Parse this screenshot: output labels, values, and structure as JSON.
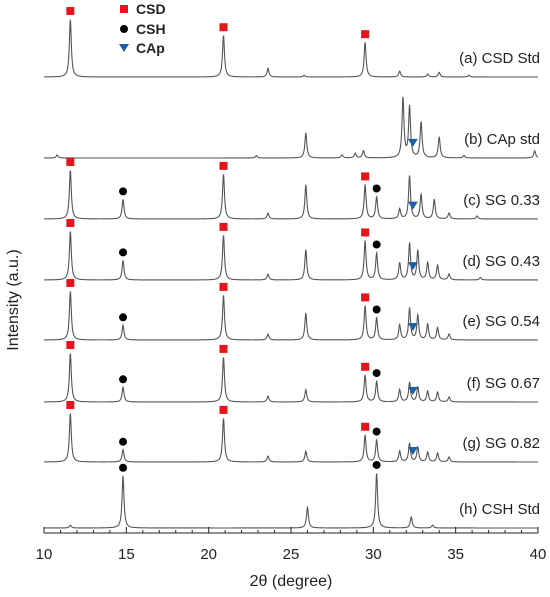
{
  "chart_data": {
    "type": "line",
    "xlabel": "2θ (degree)",
    "ylabel": "Intensity (a.u.)",
    "xlim": [
      10,
      40
    ],
    "x_ticks": [
      10,
      15,
      20,
      25,
      30,
      35,
      40
    ],
    "grid": false,
    "legend": {
      "placement": "top-left",
      "entries": [
        {
          "name": "CSD",
          "marker": "square",
          "color": "#e8141b"
        },
        {
          "name": "CSH",
          "marker": "circle",
          "color": "#000000"
        },
        {
          "name": "CAp",
          "marker": "triangle-down",
          "color": "#1f5fa8"
        }
      ]
    },
    "line_color": "#555555",
    "peak_positions": {
      "CSD": [
        11.6,
        20.9,
        29.5
      ],
      "CSH": [
        14.8,
        30.2
      ],
      "CAp": [
        32.4
      ]
    },
    "series": [
      {
        "name": "(a) CSD Std",
        "phases": {
          "CSD": [
            11.6,
            20.9,
            29.5
          ],
          "CSH": [],
          "CAp": []
        },
        "peaks": [
          [
            11.6,
            1.0
          ],
          [
            20.9,
            0.72
          ],
          [
            23.6,
            0.15
          ],
          [
            25.8,
            0.03
          ],
          [
            29.5,
            0.6
          ],
          [
            31.6,
            0.1
          ],
          [
            33.3,
            0.05
          ],
          [
            34.0,
            0.08
          ],
          [
            35.8,
            0.03
          ]
        ]
      },
      {
        "name": "(b) CAp std",
        "phases": {
          "CSD": [],
          "CSH": [],
          "CAp": [
            32.4
          ]
        },
        "peaks": [
          [
            10.8,
            0.05
          ],
          [
            22.9,
            0.04
          ],
          [
            25.9,
            0.42
          ],
          [
            28.1,
            0.05
          ],
          [
            28.9,
            0.08
          ],
          [
            29.4,
            0.12
          ],
          [
            31.8,
            1.0
          ],
          [
            32.2,
            0.85
          ],
          [
            32.9,
            0.6
          ],
          [
            34.0,
            0.35
          ],
          [
            35.5,
            0.04
          ],
          [
            39.8,
            0.12
          ]
        ]
      },
      {
        "name": "(c) SG 0.33",
        "phases": {
          "CSD": [
            11.6,
            20.9,
            29.5
          ],
          "CSH": [
            14.8,
            30.2
          ],
          "CAp": [
            32.4
          ]
        },
        "peaks": [
          [
            11.6,
            1.0
          ],
          [
            14.8,
            0.4
          ],
          [
            20.9,
            0.92
          ],
          [
            23.6,
            0.12
          ],
          [
            25.9,
            0.7
          ],
          [
            29.5,
            0.7
          ],
          [
            30.2,
            0.45
          ],
          [
            31.6,
            0.2
          ],
          [
            32.2,
            0.88
          ],
          [
            32.9,
            0.5
          ],
          [
            33.7,
            0.4
          ],
          [
            34.6,
            0.12
          ],
          [
            36.3,
            0.06
          ]
        ]
      },
      {
        "name": "(d) SG 0.43",
        "phases": {
          "CSD": [
            11.6,
            20.9,
            29.5
          ],
          "CSH": [
            14.8,
            30.2
          ],
          "CAp": [
            32.4
          ]
        },
        "peaks": [
          [
            11.6,
            1.0
          ],
          [
            14.8,
            0.4
          ],
          [
            20.9,
            0.92
          ],
          [
            23.6,
            0.12
          ],
          [
            25.9,
            0.62
          ],
          [
            29.5,
            0.8
          ],
          [
            30.2,
            0.55
          ],
          [
            31.6,
            0.35
          ],
          [
            32.2,
            0.75
          ],
          [
            32.7,
            0.6
          ],
          [
            33.3,
            0.35
          ],
          [
            33.9,
            0.3
          ],
          [
            34.6,
            0.12
          ],
          [
            36.5,
            0.05
          ]
        ]
      },
      {
        "name": "(e) SG 0.54",
        "phases": {
          "CSD": [
            11.6,
            20.9,
            29.5
          ],
          "CSH": [
            14.8,
            30.2
          ],
          "CAp": [
            32.4
          ]
        },
        "peaks": [
          [
            11.6,
            1.0
          ],
          [
            14.8,
            0.3
          ],
          [
            20.9,
            0.92
          ],
          [
            23.6,
            0.12
          ],
          [
            25.9,
            0.55
          ],
          [
            29.5,
            0.7
          ],
          [
            30.2,
            0.45
          ],
          [
            31.6,
            0.3
          ],
          [
            32.2,
            0.65
          ],
          [
            32.7,
            0.5
          ],
          [
            33.3,
            0.32
          ],
          [
            33.9,
            0.25
          ],
          [
            34.6,
            0.12
          ]
        ]
      },
      {
        "name": "(f) SG 0.67",
        "phases": {
          "CSD": [
            11.6,
            20.9,
            29.5
          ],
          "CSH": [
            14.8,
            30.2
          ],
          "CAp": [
            32.4
          ]
        },
        "peaks": [
          [
            11.6,
            1.0
          ],
          [
            14.8,
            0.3
          ],
          [
            20.9,
            0.92
          ],
          [
            23.6,
            0.12
          ],
          [
            25.9,
            0.25
          ],
          [
            29.5,
            0.55
          ],
          [
            30.2,
            0.42
          ],
          [
            31.6,
            0.25
          ],
          [
            32.2,
            0.4
          ],
          [
            32.7,
            0.3
          ],
          [
            33.3,
            0.22
          ],
          [
            33.9,
            0.2
          ],
          [
            34.6,
            0.1
          ]
        ]
      },
      {
        "name": "(g) SG 0.82",
        "phases": {
          "CSD": [
            11.6,
            20.9,
            29.5
          ],
          "CSH": [
            14.8,
            30.2
          ],
          "CAp": [
            32.4
          ]
        },
        "peaks": [
          [
            11.6,
            1.0
          ],
          [
            14.8,
            0.25
          ],
          [
            20.9,
            0.9
          ],
          [
            23.6,
            0.12
          ],
          [
            25.9,
            0.22
          ],
          [
            29.5,
            0.55
          ],
          [
            30.2,
            0.45
          ],
          [
            31.6,
            0.22
          ],
          [
            32.2,
            0.38
          ],
          [
            32.7,
            0.3
          ],
          [
            33.3,
            0.2
          ],
          [
            33.9,
            0.18
          ],
          [
            34.6,
            0.1
          ]
        ]
      },
      {
        "name": "(h) CSH Std",
        "phases": {
          "CSD": [],
          "CSH": [
            14.8,
            30.2
          ],
          "CAp": []
        },
        "peaks": [
          [
            11.6,
            0.05
          ],
          [
            14.8,
            0.95
          ],
          [
            26.0,
            0.38
          ],
          [
            30.2,
            1.0
          ],
          [
            32.3,
            0.2
          ],
          [
            33.6,
            0.05
          ]
        ]
      }
    ]
  }
}
